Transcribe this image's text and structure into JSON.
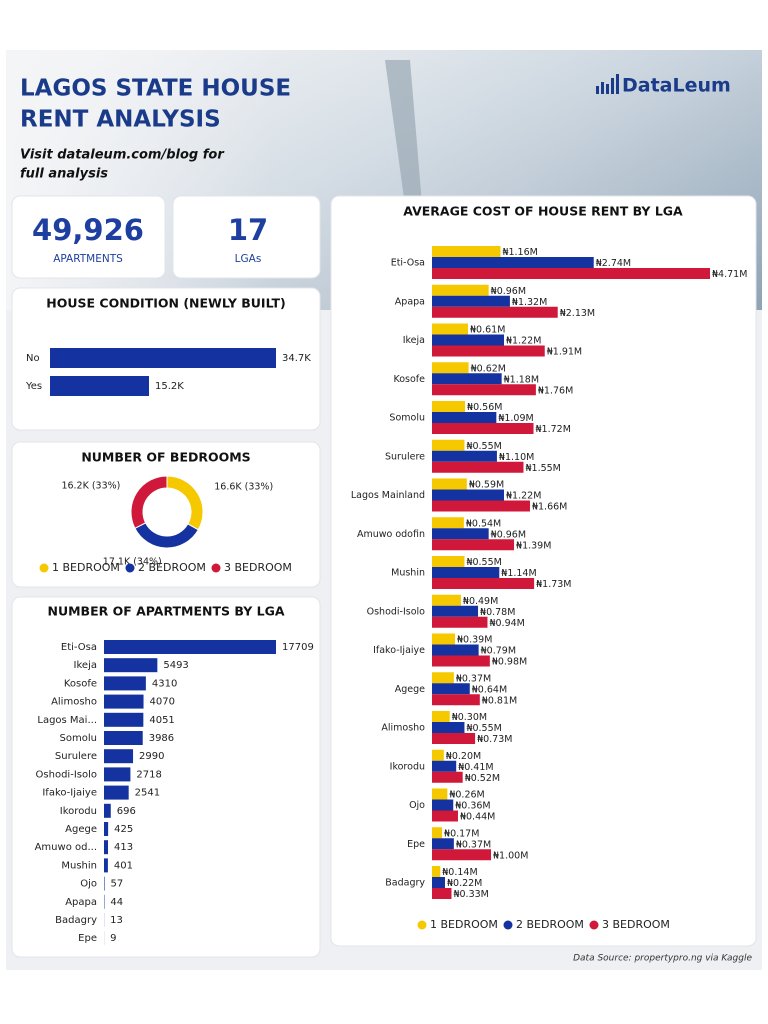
{
  "header": {
    "title_lines": [
      "LAGOS STATE HOUSE",
      "RENT ANALYSIS"
    ],
    "visit_lines": [
      "Visit dataleum.com/blog for",
      "full analysis"
    ],
    "brand": "DataLeum"
  },
  "kpis": [
    {
      "value": "49,926",
      "label": "APARTMENTS"
    },
    {
      "value": "17",
      "label": "LGAs"
    }
  ],
  "footer": "Data Source: propertypro.ng via Kaggle",
  "chart_data": [
    {
      "type": "hbar",
      "title": "HOUSE CONDITION (NEWLY BUILT)",
      "categories": [
        "No",
        "Yes"
      ],
      "values": [
        34700,
        15200
      ],
      "value_labels": [
        "34.7K",
        "15.2K"
      ],
      "color": "#1432a0"
    },
    {
      "type": "donut",
      "title": "NUMBER OF BEDROOMS",
      "categories": [
        "1 BEDROOM",
        "2 BEDROOM",
        "3 BEDROOM"
      ],
      "values": [
        16600,
        17100,
        16200
      ],
      "value_labels": [
        "16.6K (33%)",
        "17.1K (34%)",
        "16.2K (33%)"
      ],
      "colors": [
        "#f5c800",
        "#1432a0",
        "#d0183a"
      ]
    },
    {
      "type": "hbar",
      "title": "NUMBER OF APARTMENTS BY LGA",
      "categories": [
        "Eti-Osa",
        "Ikeja",
        "Kosofe",
        "Alimosho",
        "Lagos Mai...",
        "Somolu",
        "Surulere",
        "Oshodi-Isolo",
        "Ifako-Ijaiye",
        "Ikorodu",
        "Agege",
        "Amuwo od...",
        "Mushin",
        "Ojo",
        "Apapa",
        "Badagry",
        "Epe"
      ],
      "values": [
        17709,
        5493,
        4310,
        4070,
        4051,
        3986,
        2990,
        2718,
        2541,
        696,
        425,
        413,
        401,
        57,
        44,
        13,
        9
      ],
      "color": "#1432a0"
    },
    {
      "type": "grouped_hbar",
      "title": "AVERAGE COST OF HOUSE RENT BY LGA",
      "categories": [
        "Eti-Osa",
        "Apapa",
        "Ikeja",
        "Kosofe",
        "Somolu",
        "Surulere",
        "Lagos Mainland",
        "Amuwo odofin",
        "Mushin",
        "Oshodi-Isolo",
        "Ifako-Ijaiye",
        "Agege",
        "Alimosho",
        "Ikorodu",
        "Ojo",
        "Epe",
        "Badagry"
      ],
      "series": [
        {
          "name": "1 BEDROOM",
          "color": "#f5c800",
          "values": [
            1160000,
            960000,
            610000,
            620000,
            560000,
            550000,
            590000,
            540000,
            550000,
            490000,
            390000,
            370000,
            300000,
            200000,
            260000,
            170000,
            140000
          ],
          "value_labels": [
            "₦1.16M",
            "₦0.96M",
            "₦0.61M",
            "₦0.62M",
            "₦0.56M",
            "₦0.55M",
            "₦0.59M",
            "₦0.54M",
            "₦0.55M",
            "₦0.49M",
            "₦0.39M",
            "₦0.37M",
            "₦0.30M",
            "₦0.20M",
            "₦0.26M",
            "₦0.17M",
            "₦0.14M"
          ]
        },
        {
          "name": "2 BEDROOM",
          "color": "#1432a0",
          "values": [
            2740000,
            1320000,
            1220000,
            1180000,
            1090000,
            1100000,
            1220000,
            960000,
            1140000,
            780000,
            790000,
            640000,
            550000,
            410000,
            360000,
            370000,
            220000
          ],
          "value_labels": [
            "₦2.74M",
            "₦1.32M",
            "₦1.22M",
            "₦1.18M",
            "₦1.09M",
            "₦1.10M",
            "₦1.22M",
            "₦0.96M",
            "₦1.14M",
            "₦0.78M",
            "₦0.79M",
            "₦0.64M",
            "₦0.55M",
            "₦0.41M",
            "₦0.36M",
            "₦0.37M",
            "₦0.22M"
          ]
        },
        {
          "name": "3 BEDROOM",
          "color": "#d0183a",
          "values": [
            4710000,
            2130000,
            1910000,
            1760000,
            1720000,
            1550000,
            1660000,
            1390000,
            1730000,
            940000,
            980000,
            810000,
            730000,
            520000,
            440000,
            1000000,
            330000
          ],
          "value_labels": [
            "₦4.71M",
            "₦2.13M",
            "₦1.91M",
            "₦1.76M",
            "₦1.72M",
            "₦1.55M",
            "₦1.66M",
            "₦1.39M",
            "₦1.73M",
            "₦0.94M",
            "₦0.98M",
            "₦0.81M",
            "₦0.73M",
            "₦0.52M",
            "₦0.44M",
            "₦1.00M",
            "₦0.33M"
          ]
        }
      ]
    }
  ]
}
